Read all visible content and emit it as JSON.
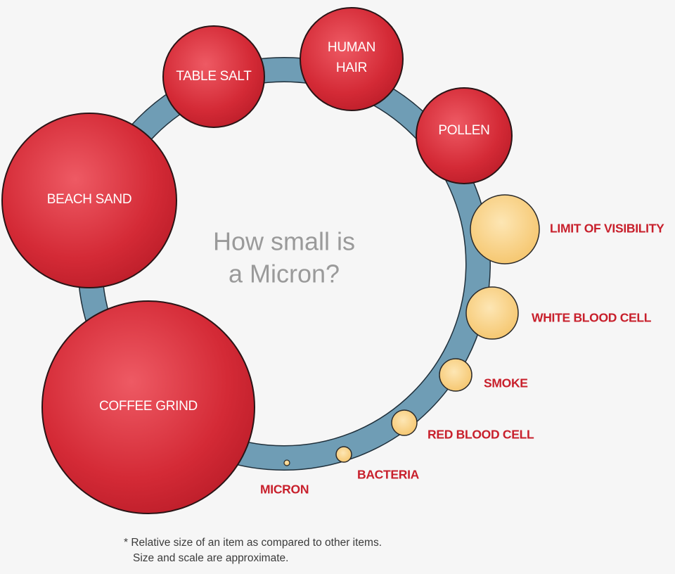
{
  "title_lines": [
    "How small is",
    "a Micron?"
  ],
  "items": [
    {
      "id": "table-salt",
      "lines": [
        "TABLE SALT"
      ],
      "kind": "large",
      "label_position": "inside"
    },
    {
      "id": "human-hair",
      "lines": [
        "HUMAN",
        "HAIR"
      ],
      "kind": "large",
      "label_position": "inside"
    },
    {
      "id": "pollen",
      "lines": [
        "POLLEN"
      ],
      "kind": "large",
      "label_position": "inside"
    },
    {
      "id": "beach-sand",
      "lines": [
        "BEACH SAND"
      ],
      "kind": "large",
      "label_position": "inside"
    },
    {
      "id": "coffee-grind",
      "lines": [
        "COFFEE GRIND"
      ],
      "kind": "large",
      "label_position": "inside"
    },
    {
      "id": "limit-of-visibility",
      "lines": [
        "LIMIT OF VISIBILITY"
      ],
      "kind": "small",
      "label_position": "outside"
    },
    {
      "id": "white-blood-cell",
      "lines": [
        "WHITE BLOOD CELL"
      ],
      "kind": "small",
      "label_position": "outside"
    },
    {
      "id": "smoke",
      "lines": [
        "SMOKE"
      ],
      "kind": "small",
      "label_position": "outside"
    },
    {
      "id": "red-blood-cell",
      "lines": [
        "RED BLOOD CELL"
      ],
      "kind": "small",
      "label_position": "outside"
    },
    {
      "id": "bacteria",
      "lines": [
        "BACTERIA"
      ],
      "kind": "small",
      "label_position": "outside"
    },
    {
      "id": "micron",
      "lines": [
        "MICRON"
      ],
      "kind": "small",
      "label_position": "outside"
    }
  ],
  "footnote_lines": [
    "* Relative size of an item as compared to other items.",
    "Size and scale are approximate."
  ],
  "colors": {
    "ring_fill": "#6f9db5",
    "ring_stroke": "#1f2f3a",
    "large_fill": "#d42a36",
    "large_highlight": "#ee5a64",
    "small_fill": "#f7cf7e",
    "small_highlight": "#fde6b4",
    "outer_label": "#c8202c",
    "title": "#9a9a9a"
  }
}
